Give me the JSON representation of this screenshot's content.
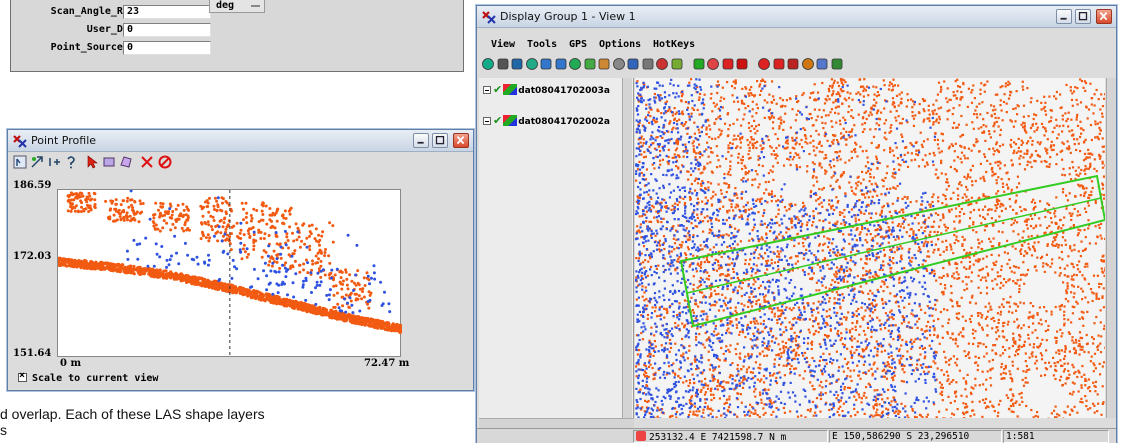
{
  "attribute_panel": {
    "rows": [
      {
        "label": "Scan_Angle_Rank:",
        "value": "23"
      },
      {
        "label": "User_Data:",
        "value": "0"
      },
      {
        "label": "Point_Source_ID:",
        "value": "0"
      }
    ],
    "unit": "deg"
  },
  "profile_window": {
    "title": "Point Profile",
    "scale_checkbox_label": "Scale to current view",
    "scale_checked": true,
    "chart_data": {
      "type": "scatter",
      "y_ticks": [
        "186.59",
        "172.03",
        "151.64"
      ],
      "x_ticks": [
        "0 m",
        "72.47 m"
      ],
      "xlim": [
        0,
        72.47
      ],
      "ylim": [
        151.64,
        186.59
      ],
      "series": [
        {
          "color": "#f25a12",
          "ground": [
            [
              0,
              171.7
            ],
            [
              12,
              170.5
            ],
            [
              24,
              168.8
            ],
            [
              36,
              166.2
            ],
            [
              48,
              163.2
            ],
            [
              60,
              160.2
            ],
            [
              72.47,
              157.6
            ]
          ]
        },
        {
          "color": "#2f52e0"
        }
      ],
      "cursor_x": 36.2
    }
  },
  "display_window": {
    "title": "Display Group 1 - View 1",
    "menus": [
      "View",
      "Tools",
      "GPS",
      "Options",
      "HotKeys"
    ],
    "layers": [
      {
        "name": "dat08041702003a",
        "visible": true
      },
      {
        "name": "dat08041702002a",
        "visible": true
      }
    ],
    "status": {
      "coords": "253132.4 E  7421598.7 N m",
      "latlon": "E 150,586290  S 23,296510",
      "scale": "1:581"
    },
    "colors": {
      "orange": "#f25a12",
      "blue": "#2f52e0",
      "profile_line": "#33cc22"
    }
  },
  "caption": {
    "line1": "d overlap.  Each of these LAS shape layers",
    "line2": "s"
  }
}
